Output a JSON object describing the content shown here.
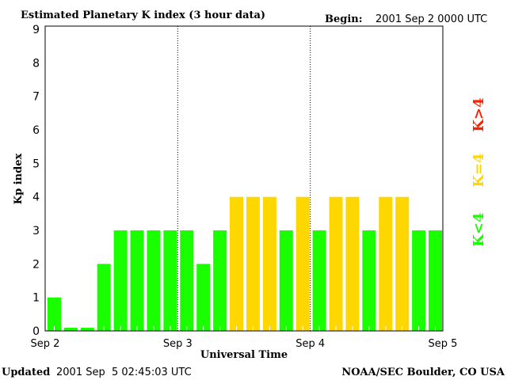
{
  "chart_data": {
    "type": "bar",
    "title": "Estimated Planetary K index (3 hour data)",
    "begin_label": "Begin:",
    "begin_value": "2001 Sep 2 0000 UTC",
    "xlabel": "Universal Time",
    "ylabel": "Kp index",
    "ylim": [
      0,
      9
    ],
    "yticks": [
      "0",
      "1",
      "2",
      "3",
      "4",
      "5",
      "6",
      "7",
      "8",
      "9"
    ],
    "xticks": [
      "Sep 2",
      "Sep 3",
      "Sep 4",
      "Sep 5"
    ],
    "interval_hours": 3,
    "values": [
      1,
      0,
      0,
      2,
      3,
      3,
      3,
      3,
      3,
      2,
      3,
      4,
      4,
      4,
      3,
      4,
      3,
      4,
      4,
      3,
      4,
      4,
      3,
      3
    ],
    "colors": {
      "below4": "#19ff00",
      "equal4": "#ffd700",
      "above4": "#ff2000"
    },
    "legend": [
      {
        "label": "K<4",
        "color": "#19ff00"
      },
      {
        "label": "K=4",
        "color": "#ffd700"
      },
      {
        "label": "K>4",
        "color": "#ff2000"
      }
    ],
    "legend_placement": "right",
    "grid": false
  },
  "footer": {
    "updated_label": "Updated",
    "updated_value": "2001 Sep  5 02:45:03 UTC",
    "source": "NOAA/SEC Boulder, CO USA"
  }
}
